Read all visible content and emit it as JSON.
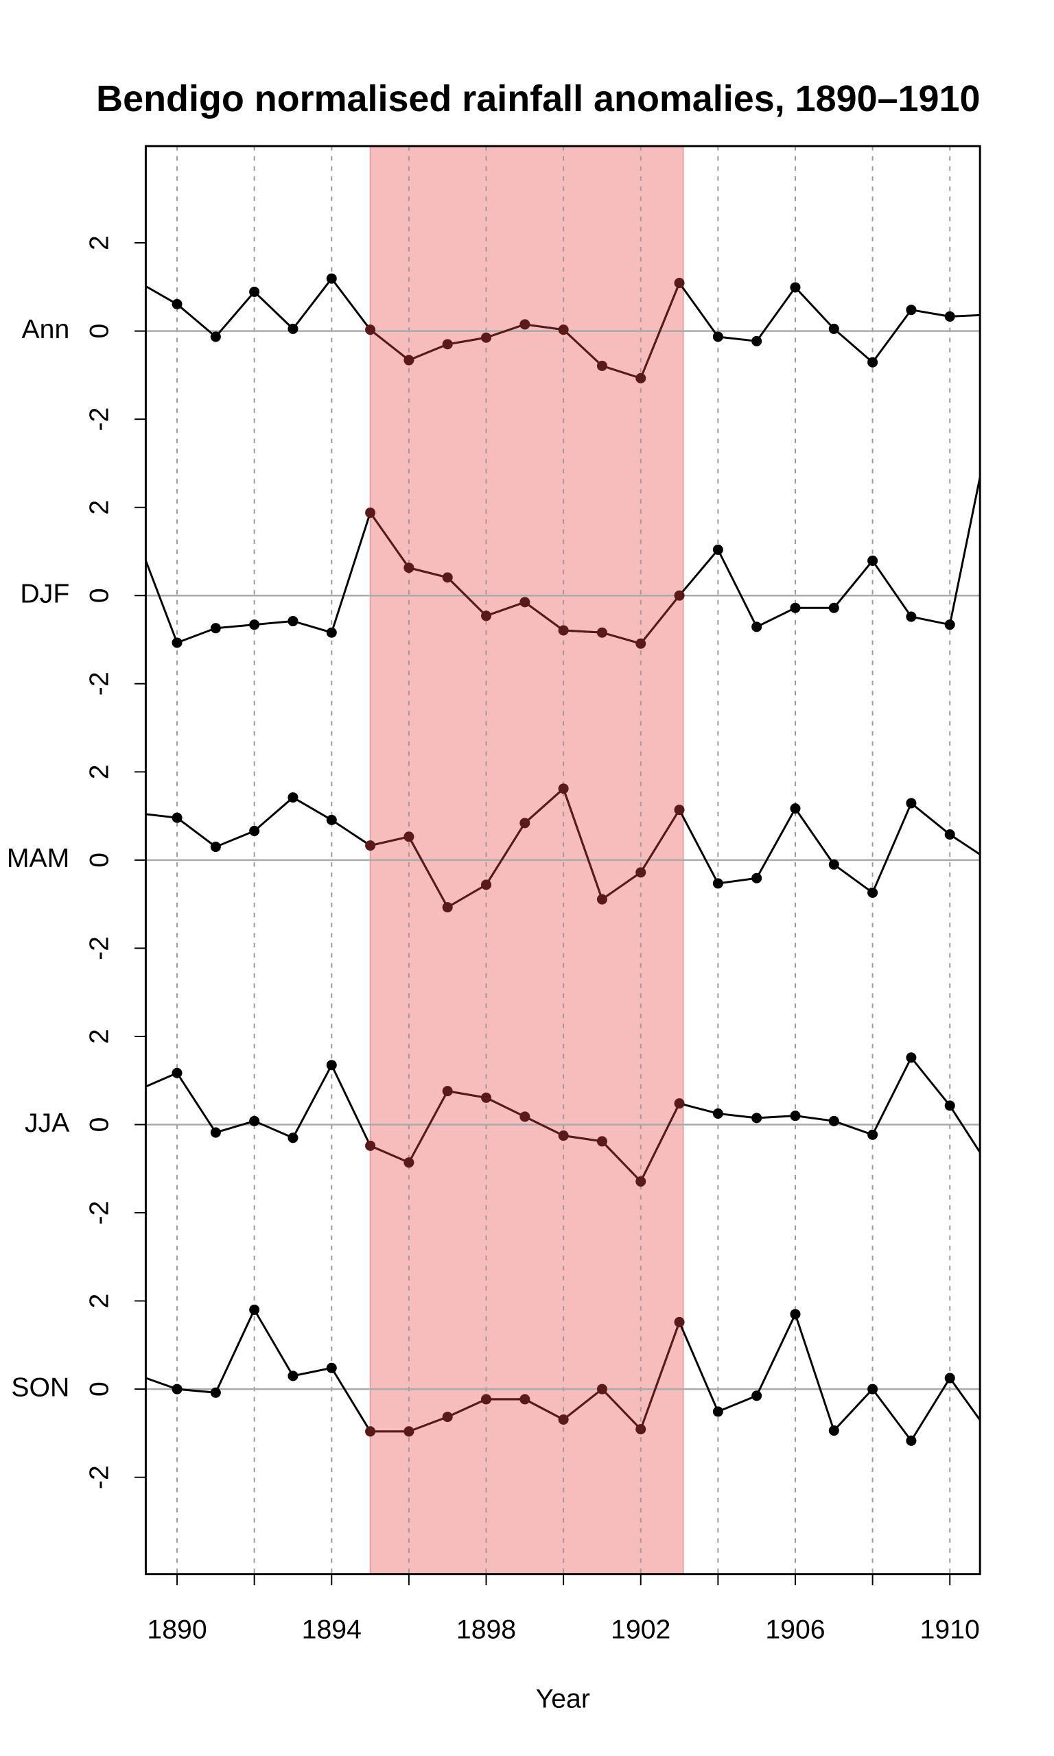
{
  "chart_data": {
    "type": "line",
    "title": "Bendigo normalised rainfall anomalies, 1890–1910",
    "xlabel": "Year",
    "x": [
      1889,
      1890,
      1891,
      1892,
      1893,
      1894,
      1895,
      1896,
      1897,
      1898,
      1899,
      1900,
      1901,
      1902,
      1903,
      1904,
      1905,
      1906,
      1907,
      1908,
      1909,
      1910,
      1911
    ],
    "xlim": [
      1889.19,
      1910.78
    ],
    "xticks": [
      1890,
      1894,
      1898,
      1902,
      1906,
      1910
    ],
    "xgrid": [
      1890,
      1892,
      1894,
      1896,
      1898,
      1900,
      1902,
      1904,
      1906,
      1908,
      1910
    ],
    "ylim": [
      -3,
      3
    ],
    "yticks": [
      -2,
      0,
      2
    ],
    "highlight": {
      "xmin": 1895,
      "xmax": 1903.1,
      "color": "#f7bcbc",
      "mark_color": "#5a1a1a"
    },
    "series": [
      {
        "name": "Ann",
        "color": "#000000",
        "values": [
          1.11,
          0.61,
          -0.13,
          0.89,
          0.05,
          1.19,
          0.03,
          -0.66,
          -0.3,
          -0.15,
          0.15,
          0.03,
          -0.79,
          -1.07,
          1.09,
          -0.13,
          -0.23,
          0.99,
          0.05,
          -0.71,
          0.48,
          0.33,
          0.37
        ]
      },
      {
        "name": "DJF",
        "color": "#000000",
        "values": [
          1.23,
          -1.07,
          -0.74,
          -0.66,
          -0.58,
          -0.84,
          1.88,
          0.63,
          0.41,
          -0.46,
          -0.15,
          -0.79,
          -0.84,
          -1.09,
          0,
          1.04,
          -0.71,
          -0.28,
          -0.28,
          0.79,
          -0.48,
          -0.66,
          3.63
        ]
      },
      {
        "name": "MAM",
        "color": "#000000",
        "values": [
          1.06,
          0.96,
          0.3,
          0.66,
          1.42,
          0.91,
          0.33,
          0.53,
          -1.07,
          -0.56,
          0.84,
          1.62,
          -0.89,
          -0.28,
          1.14,
          -0.53,
          -0.41,
          1.17,
          -0.1,
          -0.74,
          1.29,
          0.58,
          0.0
        ]
      },
      {
        "name": "JJA",
        "color": "#000000",
        "values": [
          0.79,
          1.17,
          -0.18,
          0.08,
          -0.3,
          1.35,
          -0.48,
          -0.86,
          0.76,
          0.61,
          0.18,
          -0.25,
          -0.38,
          -1.29,
          0.48,
          0.25,
          0.15,
          0.2,
          0.08,
          -0.23,
          1.52,
          0.43,
          -0.93
        ]
      },
      {
        "name": "SON",
        "color": "#000000",
        "values": [
          0.31,
          0,
          -0.08,
          1.8,
          0.3,
          0.48,
          -0.96,
          -0.96,
          -0.63,
          -0.23,
          -0.23,
          -0.69,
          0,
          -0.91,
          1.52,
          -0.51,
          -0.15,
          1.7,
          -0.94,
          0,
          -1.17,
          0.25,
          -0.97
        ]
      }
    ]
  }
}
